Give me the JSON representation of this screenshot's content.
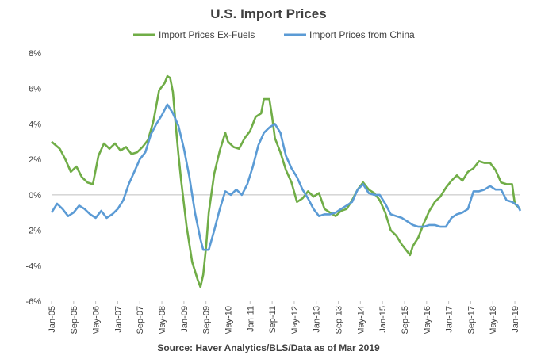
{
  "source": "Source: Haver Analytics/BLS/Data as of Mar 2019",
  "colors": {
    "ex_fuels": "#70ad47",
    "china": "#5b9bd5",
    "axis": "#bfbfbf"
  },
  "chart_data": {
    "type": "line",
    "title": "U.S. Import Prices",
    "xlabel": "",
    "ylabel": "",
    "ylim": [
      -6,
      8
    ],
    "yticks": [
      "-6%",
      "-4%",
      "-2%",
      "0%",
      "2%",
      "4%",
      "6%",
      "8%"
    ],
    "xticks": [
      "Jan-05",
      "Sep-05",
      "May-06",
      "Jan-07",
      "Sep-07",
      "May-08",
      "Jan-09",
      "Sep-09",
      "May-10",
      "Jan-11",
      "Sep-11",
      "May-12",
      "Jan-13",
      "Sep-13",
      "May-14",
      "Jan-15",
      "Sep-15",
      "May-16",
      "Jan-17",
      "Sep-17",
      "May-18",
      "Jan-19"
    ],
    "grid": false,
    "legend_position": "top",
    "x_start": "Jan-05",
    "x_end": "Mar-19",
    "series": [
      {
        "name": "Import Prices Ex-Fuels",
        "color": "#70ad47",
        "points": [
          [
            "Jan-05",
            3.0
          ],
          [
            "Apr-05",
            2.6
          ],
          [
            "Jun-05",
            2.0
          ],
          [
            "Aug-05",
            1.3
          ],
          [
            "Oct-05",
            1.6
          ],
          [
            "Dec-05",
            1.0
          ],
          [
            "Feb-06",
            0.7
          ],
          [
            "Apr-06",
            0.6
          ],
          [
            "Jun-06",
            2.2
          ],
          [
            "Aug-06",
            2.9
          ],
          [
            "Oct-06",
            2.6
          ],
          [
            "Dec-06",
            2.9
          ],
          [
            "Feb-07",
            2.5
          ],
          [
            "Apr-07",
            2.7
          ],
          [
            "Jun-07",
            2.3
          ],
          [
            "Aug-07",
            2.4
          ],
          [
            "Oct-07",
            2.7
          ],
          [
            "Dec-07",
            3.1
          ],
          [
            "Feb-08",
            4.2
          ],
          [
            "Apr-08",
            5.9
          ],
          [
            "Jun-08",
            6.3
          ],
          [
            "Jul-08",
            6.7
          ],
          [
            "Aug-08",
            6.6
          ],
          [
            "Sep-08",
            5.8
          ],
          [
            "Oct-08",
            4.0
          ],
          [
            "Nov-08",
            2.3
          ],
          [
            "Dec-08",
            0.8
          ],
          [
            "Feb-09",
            -1.8
          ],
          [
            "Apr-09",
            -3.8
          ],
          [
            "Jun-09",
            -4.8
          ],
          [
            "Jul-09",
            -5.2
          ],
          [
            "Aug-09",
            -4.5
          ],
          [
            "Sep-09",
            -3.0
          ],
          [
            "Oct-09",
            -1.0
          ],
          [
            "Dec-09",
            1.2
          ],
          [
            "Feb-10",
            2.5
          ],
          [
            "Apr-10",
            3.5
          ],
          [
            "May-10",
            3.0
          ],
          [
            "Jul-10",
            2.7
          ],
          [
            "Sep-10",
            2.6
          ],
          [
            "Nov-10",
            3.2
          ],
          [
            "Jan-11",
            3.6
          ],
          [
            "Mar-11",
            4.4
          ],
          [
            "May-11",
            4.6
          ],
          [
            "Jun-11",
            5.4
          ],
          [
            "Aug-11",
            5.4
          ],
          [
            "Sep-11",
            4.4
          ],
          [
            "Oct-11",
            3.2
          ],
          [
            "Dec-11",
            2.4
          ],
          [
            "Feb-12",
            1.4
          ],
          [
            "Apr-12",
            0.7
          ],
          [
            "Jun-12",
            -0.4
          ],
          [
            "Aug-12",
            -0.2
          ],
          [
            "Oct-12",
            0.2
          ],
          [
            "Dec-12",
            -0.1
          ],
          [
            "Feb-13",
            0.1
          ],
          [
            "Apr-13",
            -0.8
          ],
          [
            "Jun-13",
            -1.0
          ],
          [
            "Aug-13",
            -1.2
          ],
          [
            "Oct-13",
            -0.9
          ],
          [
            "Dec-13",
            -0.8
          ],
          [
            "Feb-14",
            -0.3
          ],
          [
            "Apr-14",
            0.3
          ],
          [
            "Jun-14",
            0.7
          ],
          [
            "Aug-14",
            0.3
          ],
          [
            "Oct-14",
            0.1
          ],
          [
            "Dec-14",
            -0.3
          ],
          [
            "Feb-15",
            -1.0
          ],
          [
            "Apr-15",
            -2.0
          ],
          [
            "Jun-15",
            -2.3
          ],
          [
            "Aug-15",
            -2.8
          ],
          [
            "Oct-15",
            -3.2
          ],
          [
            "Nov-15",
            -3.4
          ],
          [
            "Dec-15",
            -2.9
          ],
          [
            "Feb-16",
            -2.4
          ],
          [
            "Apr-16",
            -1.6
          ],
          [
            "Jun-16",
            -0.9
          ],
          [
            "Aug-16",
            -0.4
          ],
          [
            "Oct-16",
            -0.1
          ],
          [
            "Dec-16",
            0.4
          ],
          [
            "Feb-17",
            0.8
          ],
          [
            "Apr-17",
            1.1
          ],
          [
            "Jun-17",
            0.8
          ],
          [
            "Aug-17",
            1.3
          ],
          [
            "Oct-17",
            1.5
          ],
          [
            "Dec-17",
            1.9
          ],
          [
            "Feb-18",
            1.8
          ],
          [
            "Apr-18",
            1.8
          ],
          [
            "Jun-18",
            1.4
          ],
          [
            "Aug-18",
            0.7
          ],
          [
            "Oct-18",
            0.6
          ],
          [
            "Dec-18",
            0.6
          ],
          [
            "Jan-19",
            -0.5
          ],
          [
            "Mar-19",
            -0.8
          ]
        ]
      },
      {
        "name": "Import Prices from China",
        "color": "#5b9bd5",
        "points": [
          [
            "Jan-05",
            -1.0
          ],
          [
            "Mar-05",
            -0.5
          ],
          [
            "May-05",
            -0.8
          ],
          [
            "Jul-05",
            -1.2
          ],
          [
            "Sep-05",
            -1.0
          ],
          [
            "Nov-05",
            -0.6
          ],
          [
            "Jan-06",
            -0.8
          ],
          [
            "Mar-06",
            -1.1
          ],
          [
            "May-06",
            -1.3
          ],
          [
            "Jul-06",
            -0.9
          ],
          [
            "Sep-06",
            -1.3
          ],
          [
            "Nov-06",
            -1.1
          ],
          [
            "Jan-07",
            -0.8
          ],
          [
            "Mar-07",
            -0.3
          ],
          [
            "May-07",
            0.6
          ],
          [
            "Jul-07",
            1.3
          ],
          [
            "Sep-07",
            2.0
          ],
          [
            "Nov-07",
            2.4
          ],
          [
            "Jan-08",
            3.4
          ],
          [
            "Mar-08",
            4.0
          ],
          [
            "May-08",
            4.5
          ],
          [
            "Jul-08",
            5.1
          ],
          [
            "Sep-08",
            4.6
          ],
          [
            "Nov-08",
            3.9
          ],
          [
            "Jan-09",
            2.6
          ],
          [
            "Mar-09",
            1.0
          ],
          [
            "May-09",
            -1.0
          ],
          [
            "Jul-09",
            -2.5
          ],
          [
            "Aug-09",
            -3.1
          ],
          [
            "Oct-09",
            -3.1
          ],
          [
            "Dec-09",
            -2.0
          ],
          [
            "Feb-10",
            -0.8
          ],
          [
            "Apr-10",
            0.2
          ],
          [
            "Jun-10",
            0.0
          ],
          [
            "Aug-10",
            0.3
          ],
          [
            "Oct-10",
            0.0
          ],
          [
            "Dec-10",
            0.6
          ],
          [
            "Feb-11",
            1.6
          ],
          [
            "Apr-11",
            2.8
          ],
          [
            "Jun-11",
            3.5
          ],
          [
            "Aug-11",
            3.8
          ],
          [
            "Oct-11",
            4.0
          ],
          [
            "Dec-11",
            3.5
          ],
          [
            "Feb-12",
            2.2
          ],
          [
            "Apr-12",
            1.5
          ],
          [
            "Jun-12",
            1.0
          ],
          [
            "Aug-12",
            0.3
          ],
          [
            "Oct-12",
            -0.2
          ],
          [
            "Dec-12",
            -0.8
          ],
          [
            "Feb-13",
            -1.2
          ],
          [
            "Apr-13",
            -1.1
          ],
          [
            "Jun-13",
            -1.1
          ],
          [
            "Aug-13",
            -1.0
          ],
          [
            "Oct-13",
            -0.8
          ],
          [
            "Dec-13",
            -0.6
          ],
          [
            "Feb-14",
            -0.4
          ],
          [
            "Apr-14",
            0.3
          ],
          [
            "Jun-14",
            0.6
          ],
          [
            "Aug-14",
            0.1
          ],
          [
            "Oct-14",
            0.0
          ],
          [
            "Dec-14",
            0.0
          ],
          [
            "Feb-15",
            -0.5
          ],
          [
            "Apr-15",
            -1.1
          ],
          [
            "Jun-15",
            -1.2
          ],
          [
            "Aug-15",
            -1.3
          ],
          [
            "Oct-15",
            -1.5
          ],
          [
            "Dec-15",
            -1.7
          ],
          [
            "Feb-16",
            -1.8
          ],
          [
            "Apr-16",
            -1.8
          ],
          [
            "Jun-16",
            -1.7
          ],
          [
            "Aug-16",
            -1.7
          ],
          [
            "Oct-16",
            -1.8
          ],
          [
            "Dec-16",
            -1.8
          ],
          [
            "Feb-17",
            -1.3
          ],
          [
            "Apr-17",
            -1.1
          ],
          [
            "Jun-17",
            -1.0
          ],
          [
            "Aug-17",
            -0.8
          ],
          [
            "Oct-17",
            0.2
          ],
          [
            "Dec-17",
            0.2
          ],
          [
            "Feb-18",
            0.3
          ],
          [
            "Apr-18",
            0.5
          ],
          [
            "Jun-18",
            0.3
          ],
          [
            "Aug-18",
            0.3
          ],
          [
            "Oct-18",
            -0.3
          ],
          [
            "Dec-18",
            -0.4
          ],
          [
            "Feb-19",
            -0.6
          ],
          [
            "Mar-19",
            -0.9
          ]
        ]
      }
    ]
  }
}
